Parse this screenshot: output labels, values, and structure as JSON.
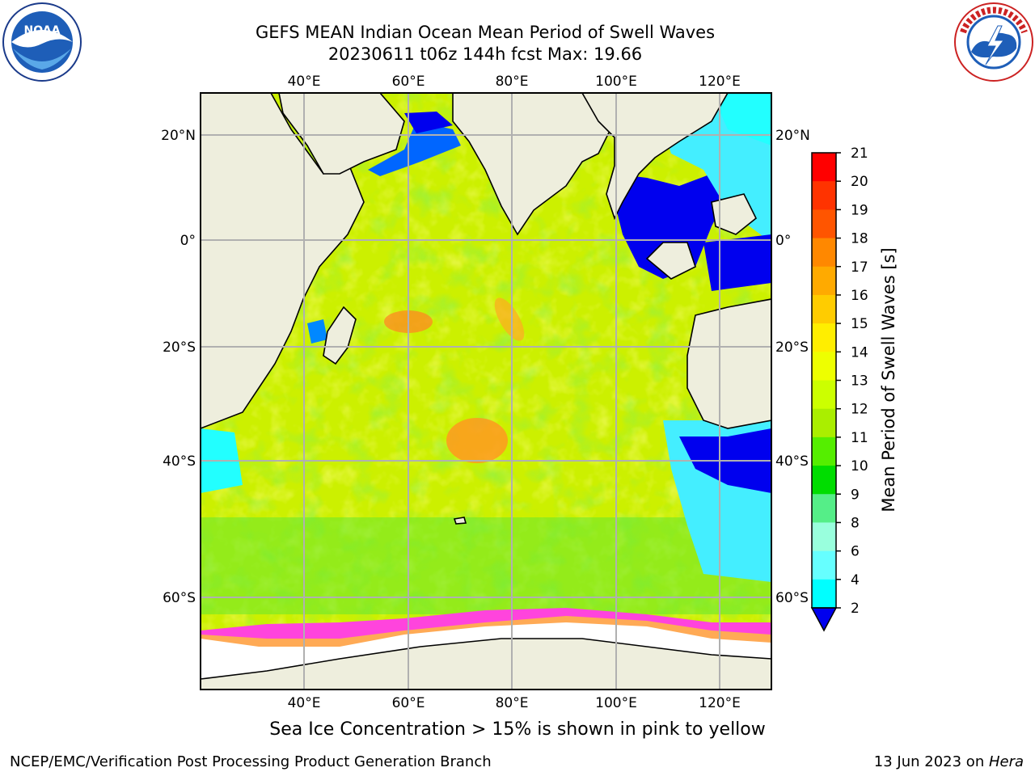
{
  "title": {
    "line1": "GEFS MEAN Indian Ocean Mean Period of Swell Waves",
    "line2": "20230611 t06z 144h fcst   Max: 19.66"
  },
  "map": {
    "lon_labels": [
      "40°E",
      "60°E",
      "80°E",
      "100°E",
      "120°E"
    ],
    "lat_labels": [
      "20°N",
      "0°",
      "20°S",
      "40°S",
      "60°S"
    ],
    "lon_values": [
      40,
      60,
      80,
      100,
      120
    ],
    "lat_values": [
      20,
      0,
      -20,
      -40,
      -60
    ],
    "extent": {
      "lon_min": 20,
      "lon_max": 130,
      "lat_min": -70,
      "lat_max": 27
    },
    "land_color": "#eeeedd",
    "ice_color": "#ffffff"
  },
  "colorbar": {
    "label": "Mean Period of Swell Waves [s]",
    "ticks": [
      "2",
      "4",
      "6",
      "8",
      "9",
      "10",
      "11",
      "12",
      "13",
      "14",
      "15",
      "16",
      "17",
      "18",
      "19",
      "20",
      "21"
    ],
    "colors": [
      "#0000ee",
      "#0077ff",
      "#00ccff",
      "#00ffff",
      "#66ffff",
      "#99ffdd",
      "#55ee88",
      "#00dd00",
      "#55ee00",
      "#aaee00",
      "#ccff00",
      "#eeff00",
      "#ffee00",
      "#ffcc00",
      "#ffaa00",
      "#ff8800",
      "#ff5500",
      "#ff3300",
      "#ff0000"
    ],
    "extend_color": "#0000ee"
  },
  "ice_note": "Sea Ice Concentration > 15% is shown in pink to yellow",
  "footer": {
    "left": "NCEP/EMC/Verification Post Processing Product Generation Branch",
    "right_date": "13 Jun 2023 on ",
    "right_host": "Hera"
  },
  "logos": {
    "left": "noaa-logo-icon",
    "right": "nws-logo-icon"
  }
}
